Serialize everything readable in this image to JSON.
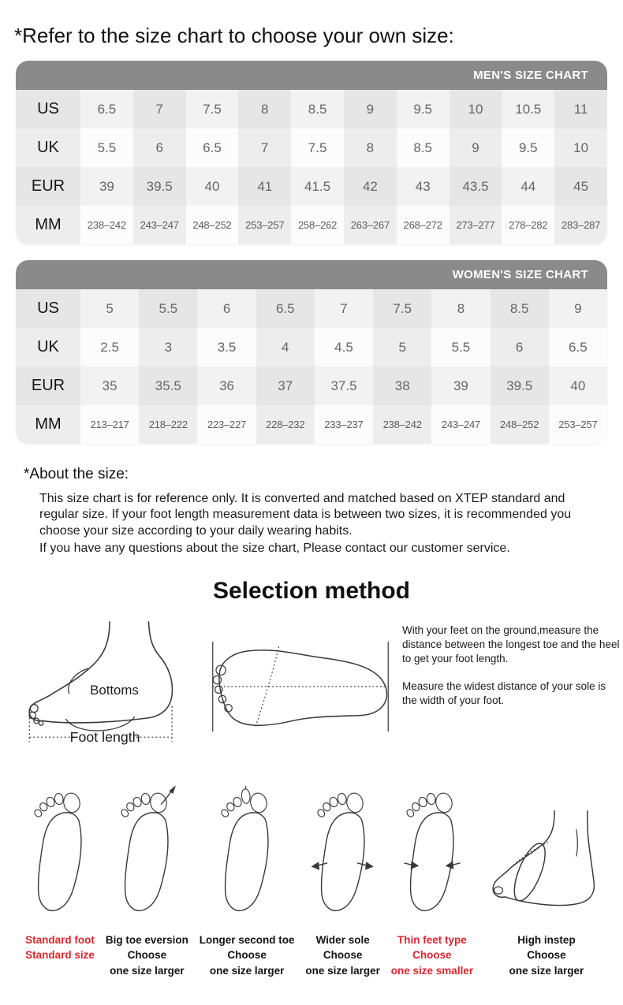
{
  "page_title": "*Refer to the size chart to choose your own size:",
  "mens_chart": {
    "title": "MEN'S SIZE CHART",
    "rows": [
      {
        "label": "US",
        "values": [
          "6.5",
          "7",
          "7.5",
          "8",
          "8.5",
          "9",
          "9.5",
          "10",
          "10.5",
          "11"
        ]
      },
      {
        "label": "UK",
        "values": [
          "5.5",
          "6",
          "6.5",
          "7",
          "7.5",
          "8",
          "8.5",
          "9",
          "9.5",
          "10"
        ]
      },
      {
        "label": "EUR",
        "values": [
          "39",
          "39.5",
          "40",
          "41",
          "41.5",
          "42",
          "43",
          "43.5",
          "44",
          "45"
        ]
      },
      {
        "label": "MM",
        "values": [
          "238–242",
          "243–247",
          "248–252",
          "253–257",
          "258–262",
          "263–267",
          "268–272",
          "273–277",
          "278–282",
          "283–287"
        ]
      }
    ]
  },
  "womens_chart": {
    "title": "WOMEN'S SIZE CHART",
    "rows": [
      {
        "label": "US",
        "values": [
          "5",
          "5.5",
          "6",
          "6.5",
          "7",
          "7.5",
          "8",
          "8.5",
          "9"
        ]
      },
      {
        "label": "UK",
        "values": [
          "2.5",
          "3",
          "3.5",
          "4",
          "4.5",
          "5",
          "5.5",
          "6",
          "6.5"
        ]
      },
      {
        "label": "EUR",
        "values": [
          "35",
          "35.5",
          "36",
          "37",
          "37.5",
          "38",
          "39",
          "39.5",
          "40"
        ]
      },
      {
        "label": "MM",
        "values": [
          "213–217",
          "218–222",
          "223–227",
          "228–232",
          "233–237",
          "238–242",
          "243–247",
          "248–252",
          "253–257"
        ]
      }
    ]
  },
  "about": {
    "heading": "*About the size:",
    "paragraph1": "This size chart is for reference only. It is converted and matched based on XTEP standard and regular size. If your foot length measurement data is between two sizes, it is recommended you choose your size according to your daily wearing habits.",
    "paragraph2": "If you have any questions about the size chart, Please contact our customer service."
  },
  "selection_method": {
    "heading": "Selection method",
    "bottoms_label": "Bottoms",
    "foot_length_label": "Foot length",
    "instruction1": "With your feet on the ground,measure the distance between the longest toe and the heel to get your foot length.",
    "instruction2": "Measure the widest distance of your sole is the width of your foot."
  },
  "foot_types": [
    {
      "id": "standard-foot",
      "lines": [
        "Standard foot",
        "Standard size"
      ],
      "highlight": true
    },
    {
      "id": "big-toe-eversion",
      "lines": [
        "Big toe eversion",
        "Choose",
        "one size larger"
      ],
      "highlight": false
    },
    {
      "id": "longer-second-toe",
      "lines": [
        "Longer second toe",
        "Choose",
        "one size larger"
      ],
      "highlight": false
    },
    {
      "id": "wider-sole",
      "lines": [
        "Wider sole",
        "Choose",
        "one size larger"
      ],
      "highlight": false
    },
    {
      "id": "thin-feet-type",
      "lines": [
        "Thin feet type",
        "Choose",
        "one size smaller"
      ],
      "highlight": true
    },
    {
      "id": "high-instep",
      "lines": [
        "High instep",
        "Choose",
        "one size larger"
      ],
      "highlight": false
    }
  ],
  "colors": {
    "header_gray": "#8a8a8a",
    "highlight_red": "#e3242f",
    "caption_black": "#121212"
  }
}
